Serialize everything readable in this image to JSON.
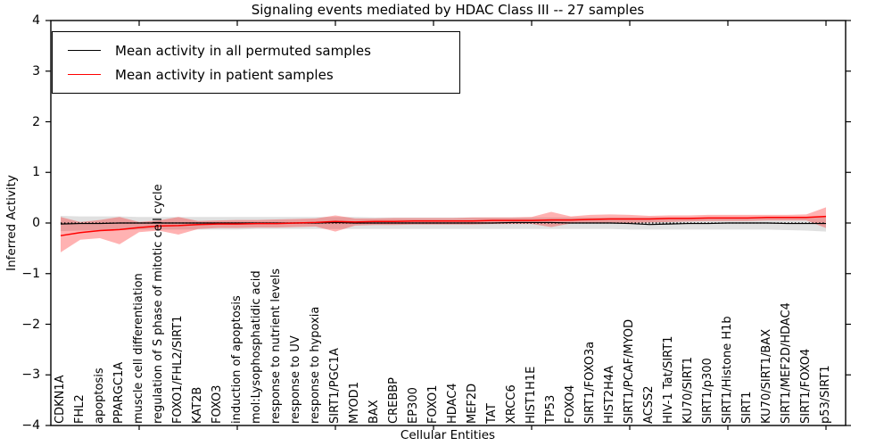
{
  "title": "Signaling events mediated by HDAC Class III -- 27 samples",
  "legend": {
    "items": [
      {
        "label": "Mean activity in all permuted samples",
        "color": "#000000"
      },
      {
        "label": "Mean activity in patient samples",
        "color": "#ff0000"
      }
    ]
  },
  "axes": {
    "x_label": "Cellular Entities",
    "y_label": "Inferred Activity",
    "y_tick_labels": [
      "4",
      "3",
      "2",
      "1",
      "0",
      "−1",
      "−2",
      "−3",
      "−4"
    ],
    "y_tick_values": [
      4,
      3,
      2,
      1,
      0,
      -1,
      -2,
      -3,
      -4
    ],
    "x_major_tick_indices": [
      4,
      9,
      14,
      19,
      24,
      29,
      34,
      39
    ]
  },
  "colors": {
    "permuted_line": "#000000",
    "patient_line": "#ff0000",
    "permuted_band": "rgba(0,0,0,0.12)",
    "patient_band": "rgba(255,0,0,0.30)",
    "frame": "#000000",
    "background": "#ffffff"
  },
  "chart_data": {
    "type": "line",
    "title": "Signaling events mediated by HDAC Class III -- 27 samples",
    "xlabel": "Cellular Entities",
    "ylabel": "Inferred Activity",
    "ylim": [
      -4,
      4
    ],
    "grid": false,
    "legend_position": "upper left",
    "sample_count_in_title": 27,
    "categories": [
      "CDKN1A",
      "FHL2",
      "apoptosis",
      "PPARGC1A",
      "muscle cell differentiation",
      "regulation of S phase of mitotic cell cycle",
      "FOXO1/FHL2/SIRT1",
      "KAT2B",
      "FOXO3",
      "induction of apoptosis",
      "mol:Lysophosphatidic acid",
      "response to nutrient levels",
      "response to UV",
      "response to hypoxia",
      "SIRT1/PGC1A",
      "MYOD1",
      "BAX",
      "CREBBP",
      "EP300",
      "FOXO1",
      "HDAC4",
      "MEF2D",
      "TAT",
      "XRCC6",
      "HIST1H1E",
      "TP53",
      "FOXO4",
      "SIRT1/FOXO3a",
      "HIST2H4A",
      "SIRT1/PCAF/MYOD",
      "ACSS2",
      "HIV-1 Tat/SIRT1",
      "KU70/SIRT1",
      "SIRT1/p300",
      "SIRT1/Histone H1b",
      "SIRT1",
      "KU70/SIRT1/BAX",
      "SIRT1/MEF2D/HDAC4",
      "SIRT1/FOXO4",
      "p53/SIRT1"
    ],
    "series": [
      {
        "name": "Mean activity in all permuted samples",
        "color": "#000000",
        "values": [
          -0.02,
          -0.01,
          -0.01,
          0,
          0,
          0,
          0,
          0,
          0,
          0,
          0,
          0,
          0,
          0,
          0.01,
          0,
          0,
          0,
          0,
          0,
          0,
          0,
          0,
          0.01,
          0.01,
          0.01,
          0,
          0,
          0,
          -0.01,
          -0.03,
          -0.02,
          -0.01,
          -0.01,
          0,
          0,
          0,
          -0.01,
          -0.01,
          -0.01
        ]
      },
      {
        "name": "Mean activity in patient samples",
        "color": "#ff0000",
        "values": [
          -0.25,
          -0.19,
          -0.15,
          -0.13,
          -0.09,
          -0.06,
          -0.05,
          -0.03,
          -0.02,
          -0.02,
          -0.01,
          -0.01,
          0,
          0.01,
          0.03,
          0.02,
          0.03,
          0.03,
          0.04,
          0.04,
          0.04,
          0.04,
          0.05,
          0.05,
          0.05,
          0.06,
          0.06,
          0.07,
          0.08,
          0.08,
          0.08,
          0.09,
          0.09,
          0.1,
          0.1,
          0.1,
          0.11,
          0.11,
          0.11,
          0.13
        ]
      }
    ],
    "bands": [
      {
        "name": "permuted-std-band",
        "upper": [
          0.14,
          0.13,
          0.13,
          0.13,
          0.12,
          0.12,
          0.12,
          0.12,
          0.12,
          0.12,
          0.12,
          0.12,
          0.12,
          0.12,
          0.12,
          0.12,
          0.11,
          0.11,
          0.11,
          0.11,
          0.11,
          0.11,
          0.11,
          0.11,
          0.11,
          0.11,
          0.11,
          0.11,
          0.11,
          0.11,
          0.11,
          0.11,
          0.11,
          0.11,
          0.11,
          0.11,
          0.11,
          0.11,
          0.11,
          0.12
        ],
        "lower": [
          -0.16,
          -0.15,
          -0.14,
          -0.14,
          -0.13,
          -0.13,
          -0.13,
          -0.13,
          -0.13,
          -0.13,
          -0.12,
          -0.12,
          -0.12,
          -0.12,
          -0.12,
          -0.12,
          -0.12,
          -0.12,
          -0.12,
          -0.12,
          -0.12,
          -0.12,
          -0.12,
          -0.12,
          -0.12,
          -0.12,
          -0.12,
          -0.12,
          -0.12,
          -0.13,
          -0.13,
          -0.13,
          -0.13,
          -0.13,
          -0.13,
          -0.13,
          -0.13,
          -0.14,
          -0.15,
          -0.17
        ]
      },
      {
        "name": "patient-std-band",
        "upper": [
          0.12,
          0.02,
          0.06,
          0.12,
          0.02,
          0.05,
          0.12,
          0.04,
          0.05,
          0.06,
          0.06,
          0.07,
          0.08,
          0.09,
          0.15,
          0.09,
          0.09,
          0.1,
          0.1,
          0.1,
          0.1,
          0.11,
          0.11,
          0.11,
          0.12,
          0.22,
          0.13,
          0.16,
          0.17,
          0.16,
          0.14,
          0.15,
          0.15,
          0.16,
          0.16,
          0.16,
          0.16,
          0.16,
          0.17,
          0.31
        ],
        "lower": [
          -0.58,
          -0.33,
          -0.3,
          -0.42,
          -0.18,
          -0.15,
          -0.23,
          -0.12,
          -0.1,
          -0.1,
          -0.09,
          -0.09,
          -0.08,
          -0.07,
          -0.17,
          -0.05,
          -0.04,
          -0.04,
          -0.03,
          -0.03,
          -0.03,
          -0.03,
          -0.02,
          -0.02,
          -0.02,
          -0.08,
          -0.01,
          0,
          0.01,
          0,
          0.01,
          0.02,
          0.03,
          0.04,
          0.04,
          0.04,
          0.05,
          0.05,
          0.05,
          -0.1
        ]
      }
    ],
    "zero_line": 0
  }
}
